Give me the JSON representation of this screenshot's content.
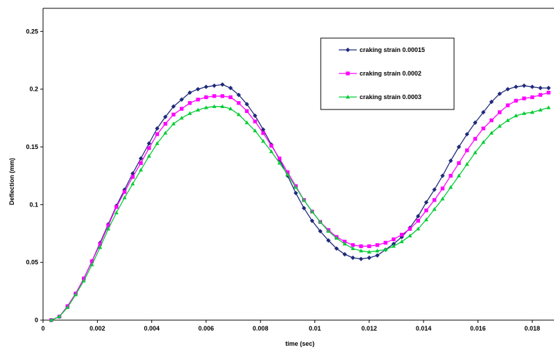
{
  "chart_data": {
    "type": "line",
    "xlabel": "time (sec)",
    "ylabel": "Deflection (mm)",
    "xlim": [
      0,
      0.0188
    ],
    "ylim": [
      0,
      0.27
    ],
    "x_ticks": [
      "0",
      "0.002",
      "0.004",
      "0.006",
      "0.008",
      "0.01",
      "0.012",
      "0.014",
      "0.016",
      "0.018"
    ],
    "y_ticks": [
      "0",
      "0.05",
      "0.1",
      "0.15",
      "0.2",
      "0.25"
    ],
    "grid": false,
    "legend_position": "top-right",
    "series": [
      {
        "name": "craking strain 0.00015",
        "color": "#1f2a7a",
        "marker": "diamond",
        "x": [
          0.0003,
          0.0006,
          0.0009,
          0.0012,
          0.0015,
          0.0018,
          0.0021,
          0.0024,
          0.0027,
          0.003,
          0.0033,
          0.0036,
          0.0039,
          0.0042,
          0.0045,
          0.0048,
          0.0051,
          0.0054,
          0.0057,
          0.006,
          0.0063,
          0.0066,
          0.0069,
          0.0072,
          0.0075,
          0.0078,
          0.0081,
          0.0084,
          0.0087,
          0.009,
          0.0093,
          0.0096,
          0.0099,
          0.0102,
          0.0105,
          0.0108,
          0.0111,
          0.0114,
          0.0117,
          0.012,
          0.0123,
          0.0126,
          0.0129,
          0.0132,
          0.0135,
          0.0138,
          0.0141,
          0.0144,
          0.0147,
          0.015,
          0.0153,
          0.0156,
          0.0159,
          0.0162,
          0.0165,
          0.0168,
          0.0171,
          0.0174,
          0.0177,
          0.018,
          0.0183,
          0.0186
        ],
        "y": [
          0.0,
          0.003,
          0.012,
          0.023,
          0.036,
          0.051,
          0.067,
          0.083,
          0.099,
          0.113,
          0.127,
          0.14,
          0.153,
          0.166,
          0.176,
          0.185,
          0.191,
          0.197,
          0.2,
          0.202,
          0.203,
          0.204,
          0.201,
          0.195,
          0.187,
          0.177,
          0.165,
          0.152,
          0.139,
          0.125,
          0.11,
          0.097,
          0.086,
          0.077,
          0.069,
          0.062,
          0.057,
          0.054,
          0.053,
          0.054,
          0.056,
          0.061,
          0.066,
          0.072,
          0.08,
          0.09,
          0.102,
          0.113,
          0.125,
          0.138,
          0.15,
          0.161,
          0.171,
          0.18,
          0.189,
          0.196,
          0.2,
          0.202,
          0.203,
          0.202,
          0.201,
          0.201
        ]
      },
      {
        "name": "craking strain 0.0002",
        "color": "#ff00ff",
        "marker": "square",
        "x": [
          0.0003,
          0.0006,
          0.0009,
          0.0012,
          0.0015,
          0.0018,
          0.0021,
          0.0024,
          0.0027,
          0.003,
          0.0033,
          0.0036,
          0.0039,
          0.0042,
          0.0045,
          0.0048,
          0.0051,
          0.0054,
          0.0057,
          0.006,
          0.0063,
          0.0066,
          0.0069,
          0.0072,
          0.0075,
          0.0078,
          0.0081,
          0.0084,
          0.0087,
          0.009,
          0.0093,
          0.0096,
          0.0099,
          0.0102,
          0.0105,
          0.0108,
          0.0111,
          0.0114,
          0.0117,
          0.012,
          0.0123,
          0.0126,
          0.0129,
          0.0132,
          0.0135,
          0.0138,
          0.0141,
          0.0144,
          0.0147,
          0.015,
          0.0153,
          0.0156,
          0.0159,
          0.0162,
          0.0165,
          0.0168,
          0.0171,
          0.0174,
          0.0177,
          0.018,
          0.0183,
          0.0186
        ],
        "y": [
          0.0,
          0.003,
          0.012,
          0.023,
          0.036,
          0.051,
          0.066,
          0.082,
          0.098,
          0.111,
          0.124,
          0.136,
          0.149,
          0.161,
          0.17,
          0.178,
          0.183,
          0.188,
          0.191,
          0.193,
          0.194,
          0.194,
          0.193,
          0.188,
          0.181,
          0.172,
          0.162,
          0.151,
          0.14,
          0.128,
          0.116,
          0.104,
          0.094,
          0.085,
          0.078,
          0.072,
          0.068,
          0.065,
          0.064,
          0.064,
          0.065,
          0.067,
          0.07,
          0.074,
          0.079,
          0.086,
          0.095,
          0.104,
          0.114,
          0.125,
          0.136,
          0.147,
          0.157,
          0.166,
          0.173,
          0.18,
          0.186,
          0.19,
          0.192,
          0.193,
          0.195,
          0.197
        ]
      },
      {
        "name": "craking strain 0.0003",
        "color": "#00cc33",
        "marker": "triangle",
        "x": [
          0.0003,
          0.0006,
          0.0009,
          0.0012,
          0.0015,
          0.0018,
          0.0021,
          0.0024,
          0.0027,
          0.003,
          0.0033,
          0.0036,
          0.0039,
          0.0042,
          0.0045,
          0.0048,
          0.0051,
          0.0054,
          0.0057,
          0.006,
          0.0063,
          0.0066,
          0.0069,
          0.0072,
          0.0075,
          0.0078,
          0.0081,
          0.0084,
          0.0087,
          0.009,
          0.0093,
          0.0096,
          0.0099,
          0.0102,
          0.0105,
          0.0108,
          0.0111,
          0.0114,
          0.0117,
          0.012,
          0.0123,
          0.0126,
          0.0129,
          0.0132,
          0.0135,
          0.0138,
          0.0141,
          0.0144,
          0.0147,
          0.015,
          0.0153,
          0.0156,
          0.0159,
          0.0162,
          0.0165,
          0.0168,
          0.0171,
          0.0174,
          0.0177,
          0.018,
          0.0183,
          0.0186
        ],
        "y": [
          0.0,
          0.003,
          0.011,
          0.022,
          0.034,
          0.048,
          0.063,
          0.079,
          0.093,
          0.106,
          0.118,
          0.13,
          0.142,
          0.153,
          0.162,
          0.17,
          0.175,
          0.179,
          0.182,
          0.184,
          0.185,
          0.185,
          0.183,
          0.178,
          0.171,
          0.164,
          0.155,
          0.146,
          0.136,
          0.126,
          0.115,
          0.104,
          0.094,
          0.085,
          0.077,
          0.071,
          0.066,
          0.062,
          0.06,
          0.059,
          0.06,
          0.061,
          0.064,
          0.068,
          0.073,
          0.079,
          0.087,
          0.096,
          0.105,
          0.115,
          0.125,
          0.135,
          0.145,
          0.154,
          0.162,
          0.168,
          0.173,
          0.177,
          0.179,
          0.18,
          0.182,
          0.184
        ]
      }
    ]
  }
}
